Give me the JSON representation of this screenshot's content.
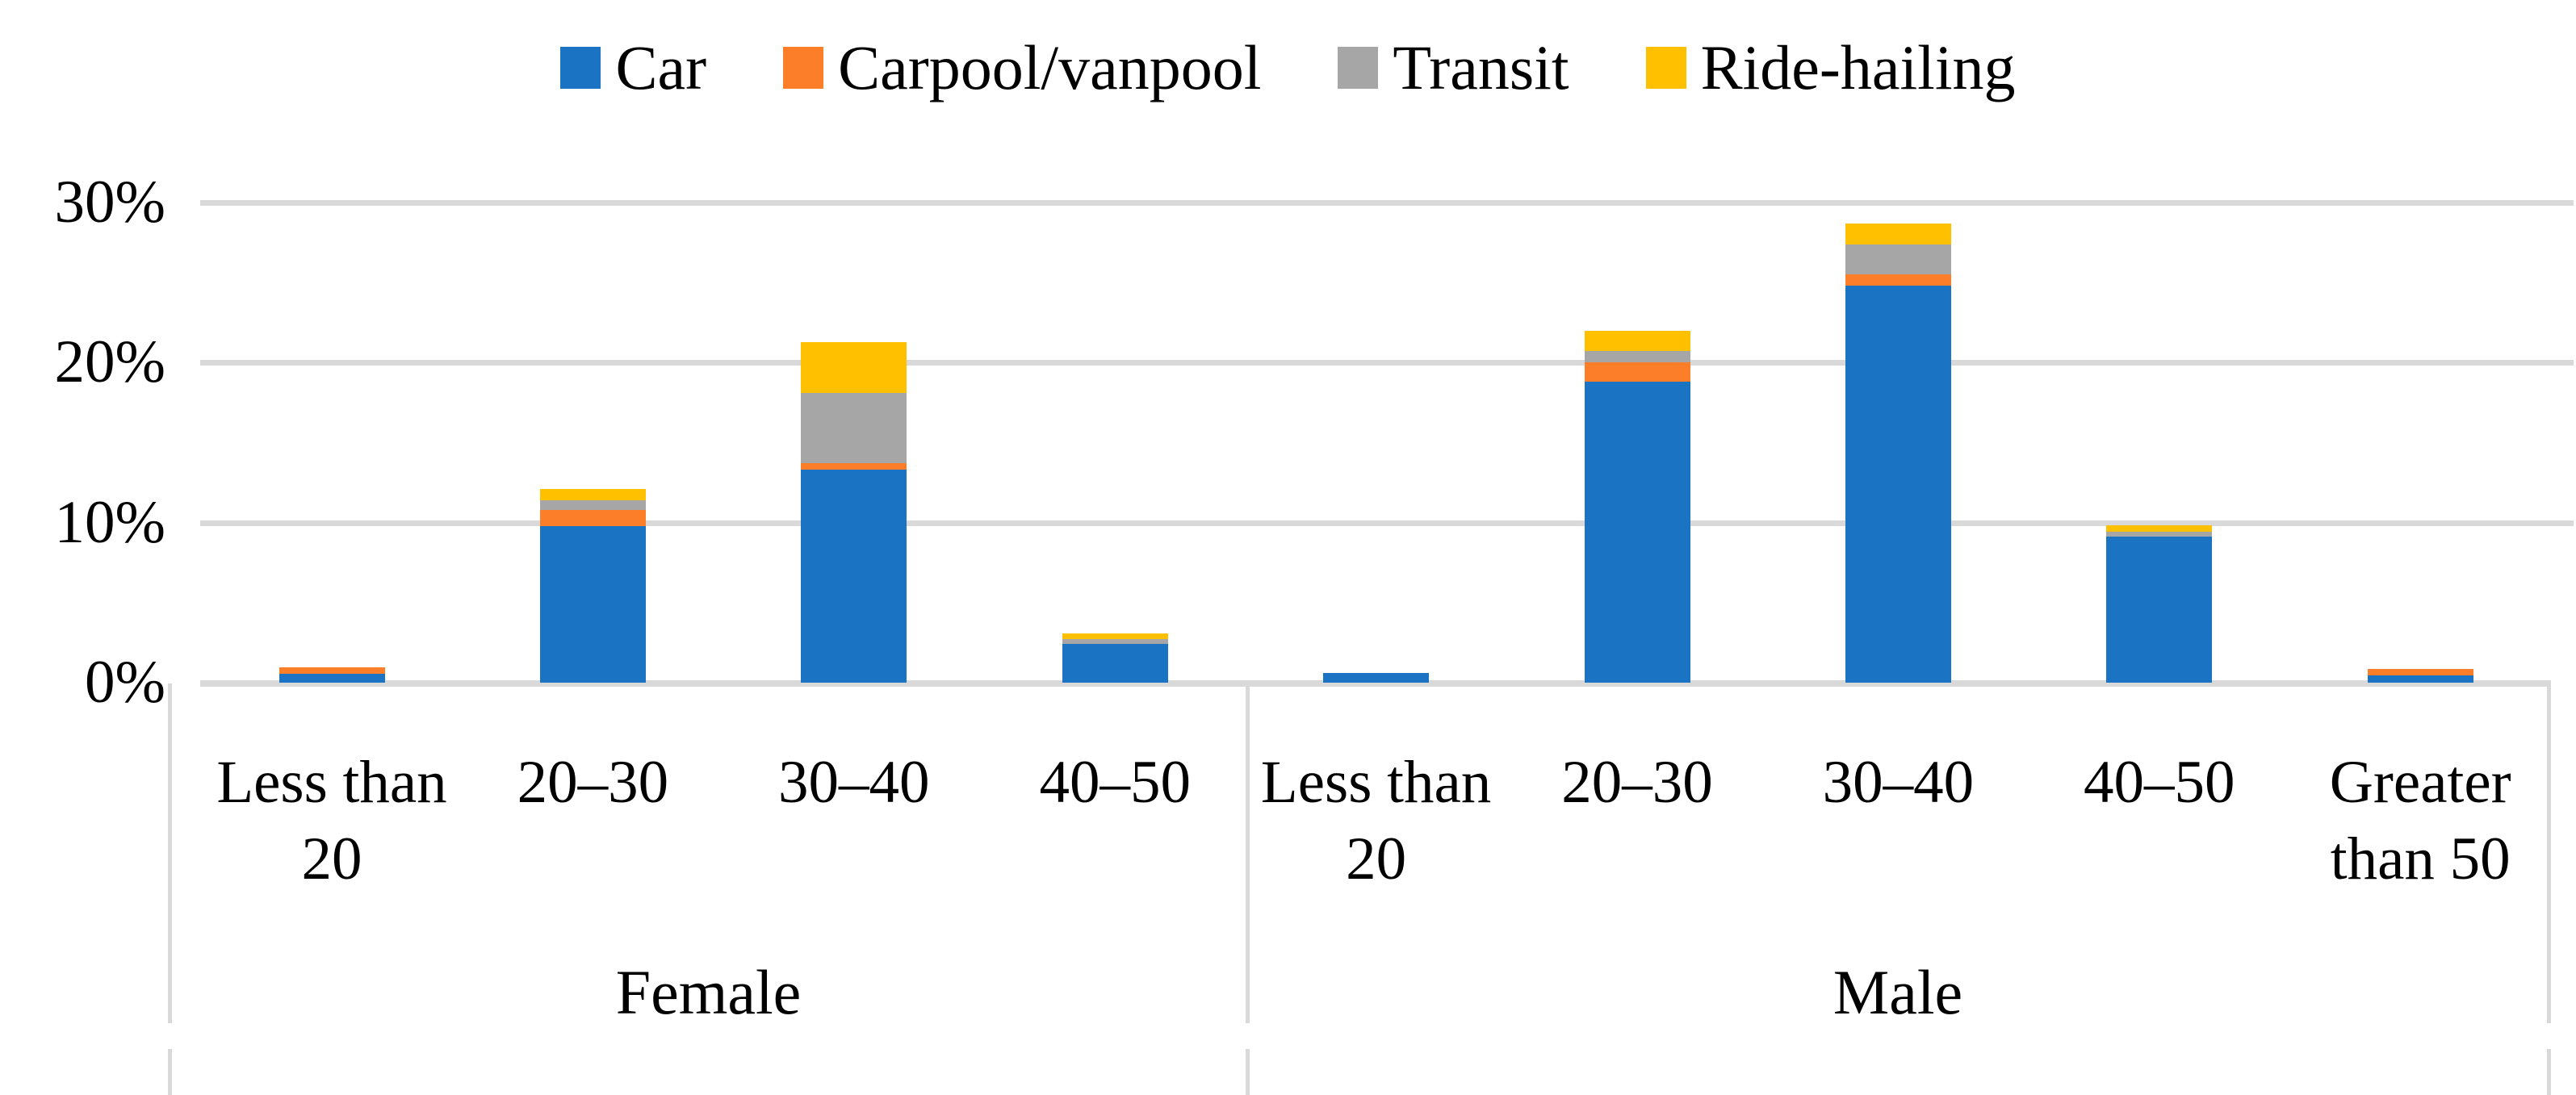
{
  "chart_data": {
    "type": "bar",
    "stacked": true,
    "title": "",
    "legend_position": "top",
    "grid": true,
    "ylim": [
      0,
      30
    ],
    "yticks": [
      {
        "value": 0,
        "label": "0%"
      },
      {
        "value": 10,
        "label": "10%"
      },
      {
        "value": 20,
        "label": "20%"
      },
      {
        "value": 30,
        "label": "30%"
      }
    ],
    "groups": [
      {
        "label": "Female",
        "categories": [
          {
            "label": "Less than 20",
            "lines": [
              "Less than",
              "20"
            ]
          },
          {
            "label": "20–30",
            "lines": [
              "20–30"
            ]
          },
          {
            "label": "30–40",
            "lines": [
              "30–40"
            ]
          },
          {
            "label": "40–50",
            "lines": [
              "40–50"
            ]
          }
        ]
      },
      {
        "label": "Male",
        "categories": [
          {
            "label": "Less than 20",
            "lines": [
              "Less than",
              "20"
            ]
          },
          {
            "label": "20–30",
            "lines": [
              "20–30"
            ]
          },
          {
            "label": "30–40",
            "lines": [
              "30–40"
            ]
          },
          {
            "label": "40–50",
            "lines": [
              "40–50"
            ]
          },
          {
            "label": "Greater than 50",
            "lines": [
              "Greater",
              "than 50"
            ]
          }
        ]
      }
    ],
    "series": [
      {
        "name": "Car",
        "color": "#1B73C4",
        "values": [
          0.55,
          9.8,
          13.3,
          2.4,
          0.6,
          18.8,
          24.8,
          9.15,
          0.45
        ]
      },
      {
        "name": "Carpool/vanpool",
        "color": "#FD7E28",
        "values": [
          0.4,
          1.0,
          0.4,
          0.0,
          0.0,
          1.2,
          0.7,
          0.0,
          0.4
        ]
      },
      {
        "name": "Transit",
        "color": "#A6A6A6",
        "values": [
          0.0,
          0.6,
          4.4,
          0.3,
          0.0,
          0.7,
          1.9,
          0.3,
          0.0
        ]
      },
      {
        "name": "Ride-hailing",
        "color": "#FFC000",
        "values": [
          0.0,
          0.7,
          3.2,
          0.4,
          0.0,
          1.3,
          1.3,
          0.4,
          0.0
        ]
      }
    ],
    "totals_percent": [
      0.95,
      12.1,
      21.3,
      3.1,
      0.6,
      22.0,
      28.7,
      9.85,
      0.85
    ],
    "colors": {
      "gridline": "#D9D9D9",
      "text": "#000000"
    }
  }
}
